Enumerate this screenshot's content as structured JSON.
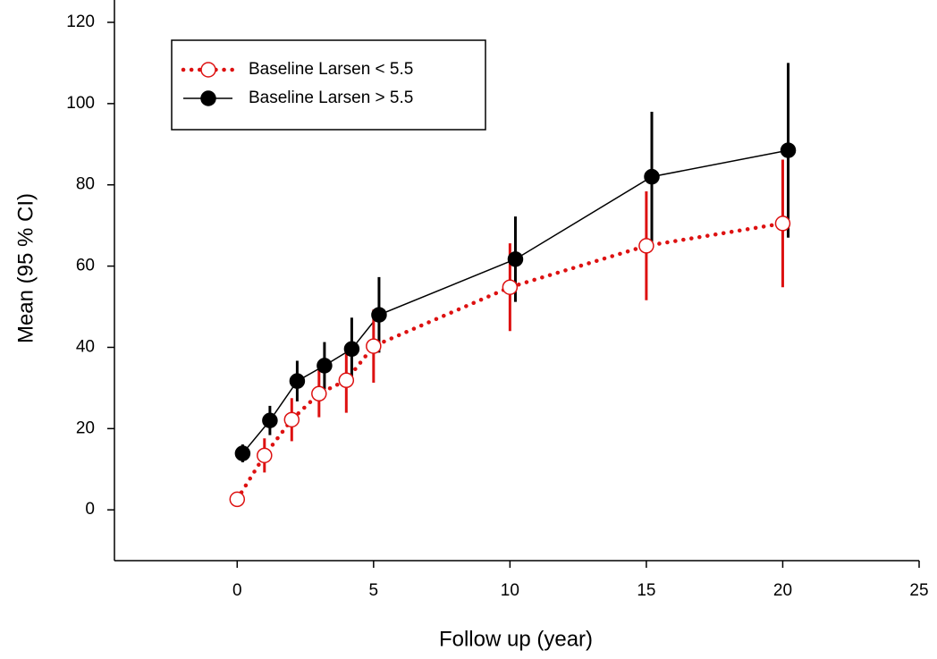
{
  "chart_data": {
    "type": "line",
    "xlabel": "Follow up (year)",
    "ylabel": "Mean (95 % CI)",
    "xlim": [
      -4.5,
      25
    ],
    "xticks": [
      0,
      5,
      10,
      15,
      20,
      25
    ],
    "ylim": [
      -12.5,
      125.5
    ],
    "yticks": [
      0,
      20,
      40,
      60,
      80,
      100,
      120
    ],
    "legend": "upper left",
    "series": [
      {
        "name": "Baseline Larsen < 5.5",
        "color": "#dd1111",
        "linestyle": "dotted",
        "marker": "open-circle",
        "x": [
          0,
          1,
          2,
          3,
          4,
          5,
          10,
          15,
          20
        ],
        "values": [
          2.6,
          13.4,
          22.2,
          28.6,
          31.9,
          40.3,
          54.8,
          65,
          70.5
        ],
        "errors": [
          0,
          4.2,
          5.3,
          5.8,
          8,
          9,
          10.8,
          13.4,
          15.7
        ]
      },
      {
        "name": "Baseline Larsen > 5.5",
        "color": "#000000",
        "linestyle": "solid",
        "marker": "filled-circle",
        "x": [
          0.2,
          1.2,
          2.2,
          3.2,
          4.2,
          5.2,
          10.2,
          15.2,
          20.2
        ],
        "values": [
          13.9,
          22,
          31.7,
          35.5,
          39.6,
          48,
          61.7,
          82,
          88.5
        ],
        "errors": [
          2.2,
          3.6,
          5,
          5.8,
          7.7,
          9.3,
          10.5,
          16,
          21.5
        ]
      }
    ]
  }
}
